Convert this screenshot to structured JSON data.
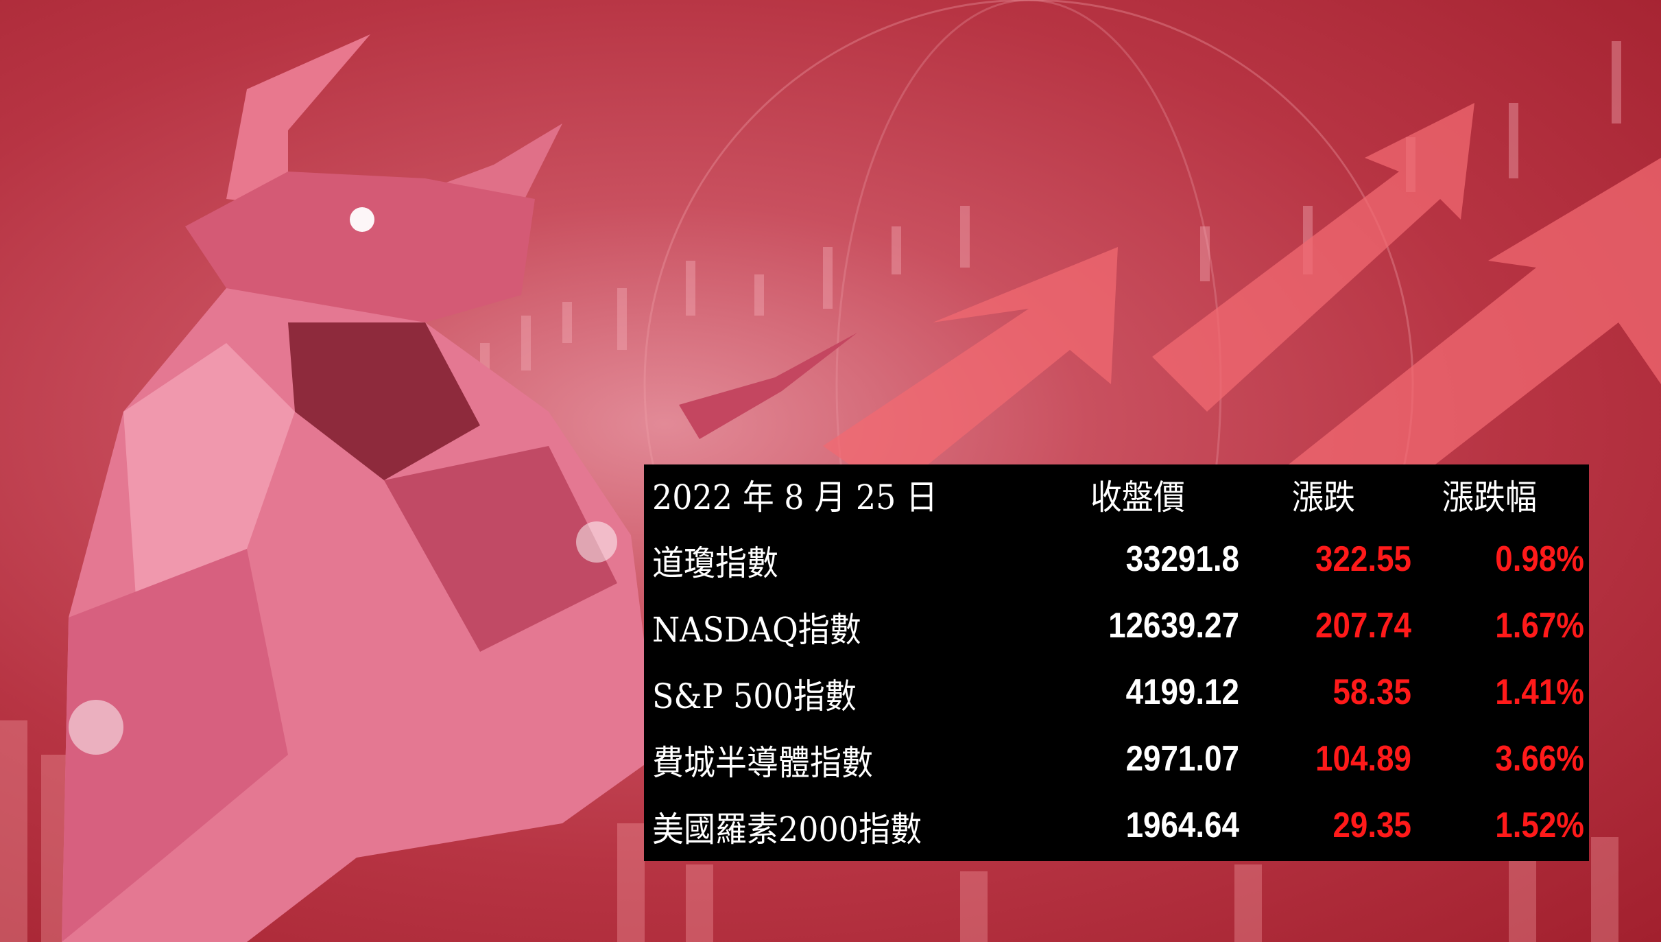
{
  "colors": {
    "positive": "#ff1a1a",
    "table_bg": "#000000",
    "text": "#ffffff"
  },
  "table": {
    "header": {
      "date": "2022 年 8 月 25 日",
      "close": "收盤價",
      "change": "漲跌",
      "pct": "漲跌幅"
    },
    "rows": [
      {
        "name": "道瓊指數",
        "close": "33291.8",
        "change": "322.55",
        "pct": "0.98%"
      },
      {
        "name": "NASDAQ指數",
        "close": "12639.27",
        "change": "207.74",
        "pct": "1.67%"
      },
      {
        "name": "S&P 500指數",
        "close": "4199.12",
        "change": "58.35",
        "pct": "1.41%"
      },
      {
        "name": "費城半導體指數",
        "close": "2971.07",
        "change": "104.89",
        "pct": "3.66%"
      },
      {
        "name": "美國羅素2000指數",
        "close": "1964.64",
        "change": "29.35",
        "pct": "1.52%"
      }
    ]
  }
}
